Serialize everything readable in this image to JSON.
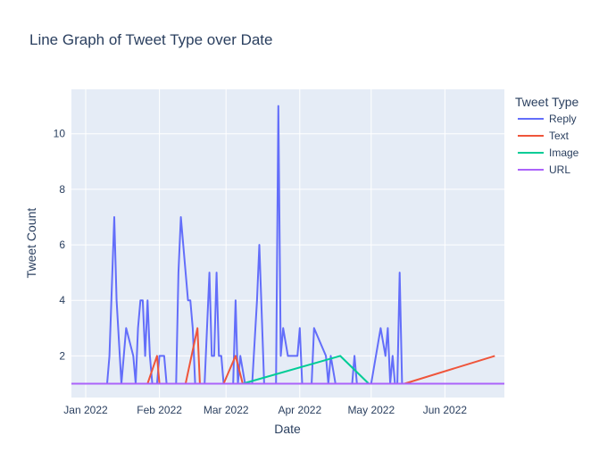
{
  "chart_data": {
    "type": "line",
    "title": "Line Graph of Tweet Type over Date",
    "xlabel": "Date",
    "ylabel": "Tweet Count",
    "xlim": [
      "2021-12-26",
      "2022-06-26"
    ],
    "ylim": [
      0.5,
      11.6
    ],
    "x_ticks": [
      {
        "date": "2022-01-01",
        "label": "Jan 2022"
      },
      {
        "date": "2022-02-01",
        "label": "Feb 2022"
      },
      {
        "date": "2022-03-01",
        "label": "Mar 2022"
      },
      {
        "date": "2022-04-01",
        "label": "Apr 2022"
      },
      {
        "date": "2022-05-01",
        "label": "May 2022"
      },
      {
        "date": "2022-06-01",
        "label": "Jun 2022"
      }
    ],
    "y_ticks": [
      2,
      4,
      6,
      8,
      10
    ],
    "grid": true,
    "legend": {
      "title": "Tweet Type",
      "placement": "top-right"
    },
    "series": [
      {
        "name": "Reply",
        "color": "#636efa",
        "points": [
          [
            "2021-12-26",
            1
          ],
          [
            "2022-01-10",
            1
          ],
          [
            "2022-01-11",
            2
          ],
          [
            "2022-01-13",
            7
          ],
          [
            "2022-01-14",
            4
          ],
          [
            "2022-01-16",
            1
          ],
          [
            "2022-01-18",
            3
          ],
          [
            "2022-01-21",
            2
          ],
          [
            "2022-01-22",
            1
          ],
          [
            "2022-01-23",
            3
          ],
          [
            "2022-01-24",
            4
          ],
          [
            "2022-01-25",
            4
          ],
          [
            "2022-01-26",
            2
          ],
          [
            "2022-01-27",
            4
          ],
          [
            "2022-01-28",
            2
          ],
          [
            "2022-01-29",
            1
          ],
          [
            "2022-01-31",
            1
          ],
          [
            "2022-02-01",
            2
          ],
          [
            "2022-02-03",
            2
          ],
          [
            "2022-02-04",
            1
          ],
          [
            "2022-02-08",
            1
          ],
          [
            "2022-02-09",
            5
          ],
          [
            "2022-02-10",
            7
          ],
          [
            "2022-02-13",
            4
          ],
          [
            "2022-02-14",
            4
          ],
          [
            "2022-02-15",
            3
          ],
          [
            "2022-02-16",
            1
          ],
          [
            "2022-02-20",
            1
          ],
          [
            "2022-02-22",
            5
          ],
          [
            "2022-02-23",
            2
          ],
          [
            "2022-02-24",
            2
          ],
          [
            "2022-02-25",
            5
          ],
          [
            "2022-02-26",
            2
          ],
          [
            "2022-02-27",
            2
          ],
          [
            "2022-02-28",
            1
          ],
          [
            "2022-03-04",
            1
          ],
          [
            "2022-03-05",
            4
          ],
          [
            "2022-03-06",
            1
          ],
          [
            "2022-03-07",
            2
          ],
          [
            "2022-03-09",
            1
          ],
          [
            "2022-03-12",
            1
          ],
          [
            "2022-03-14",
            4
          ],
          [
            "2022-03-15",
            6
          ],
          [
            "2022-03-17",
            1
          ],
          [
            "2022-03-22",
            1
          ],
          [
            "2022-03-23",
            11
          ],
          [
            "2022-03-24",
            2
          ],
          [
            "2022-03-25",
            3
          ],
          [
            "2022-03-27",
            2
          ],
          [
            "2022-03-31",
            2
          ],
          [
            "2022-04-01",
            3
          ],
          [
            "2022-04-02",
            1
          ],
          [
            "2022-04-06",
            1
          ],
          [
            "2022-04-07",
            3
          ],
          [
            "2022-04-12",
            2
          ],
          [
            "2022-04-13",
            1
          ],
          [
            "2022-04-14",
            2
          ],
          [
            "2022-04-16",
            1
          ],
          [
            "2022-04-23",
            1
          ],
          [
            "2022-04-24",
            2
          ],
          [
            "2022-04-25",
            1
          ],
          [
            "2022-05-01",
            1
          ],
          [
            "2022-05-05",
            3
          ],
          [
            "2022-05-07",
            2
          ],
          [
            "2022-05-08",
            3
          ],
          [
            "2022-05-09",
            1
          ],
          [
            "2022-05-10",
            2
          ],
          [
            "2022-05-11",
            1
          ],
          [
            "2022-05-12",
            1
          ],
          [
            "2022-05-13",
            5
          ],
          [
            "2022-05-14",
            1
          ],
          [
            "2022-06-26",
            1
          ]
        ]
      },
      {
        "name": "Text",
        "color": "#ef553b",
        "points": [
          [
            "2022-01-05",
            1
          ],
          [
            "2022-01-27",
            1
          ],
          [
            "2022-01-31",
            2
          ],
          [
            "2022-02-01",
            1
          ],
          [
            "2022-02-12",
            1
          ],
          [
            "2022-02-17",
            3
          ],
          [
            "2022-02-18",
            1
          ],
          [
            "2022-02-28",
            1
          ],
          [
            "2022-03-05",
            2
          ],
          [
            "2022-03-08",
            1
          ],
          [
            "2022-05-15",
            1
          ],
          [
            "2022-06-22",
            2
          ]
        ]
      },
      {
        "name": "Image",
        "color": "#00cc96",
        "points": [
          [
            "2022-01-22",
            1
          ],
          [
            "2022-03-06",
            1
          ],
          [
            "2022-03-08",
            1
          ],
          [
            "2022-04-18",
            2
          ],
          [
            "2022-04-30",
            1
          ],
          [
            "2022-06-26",
            1
          ]
        ]
      },
      {
        "name": "URL",
        "color": "#ab63fa",
        "points": [
          [
            "2021-12-26",
            1
          ],
          [
            "2022-06-26",
            1
          ]
        ]
      }
    ]
  }
}
